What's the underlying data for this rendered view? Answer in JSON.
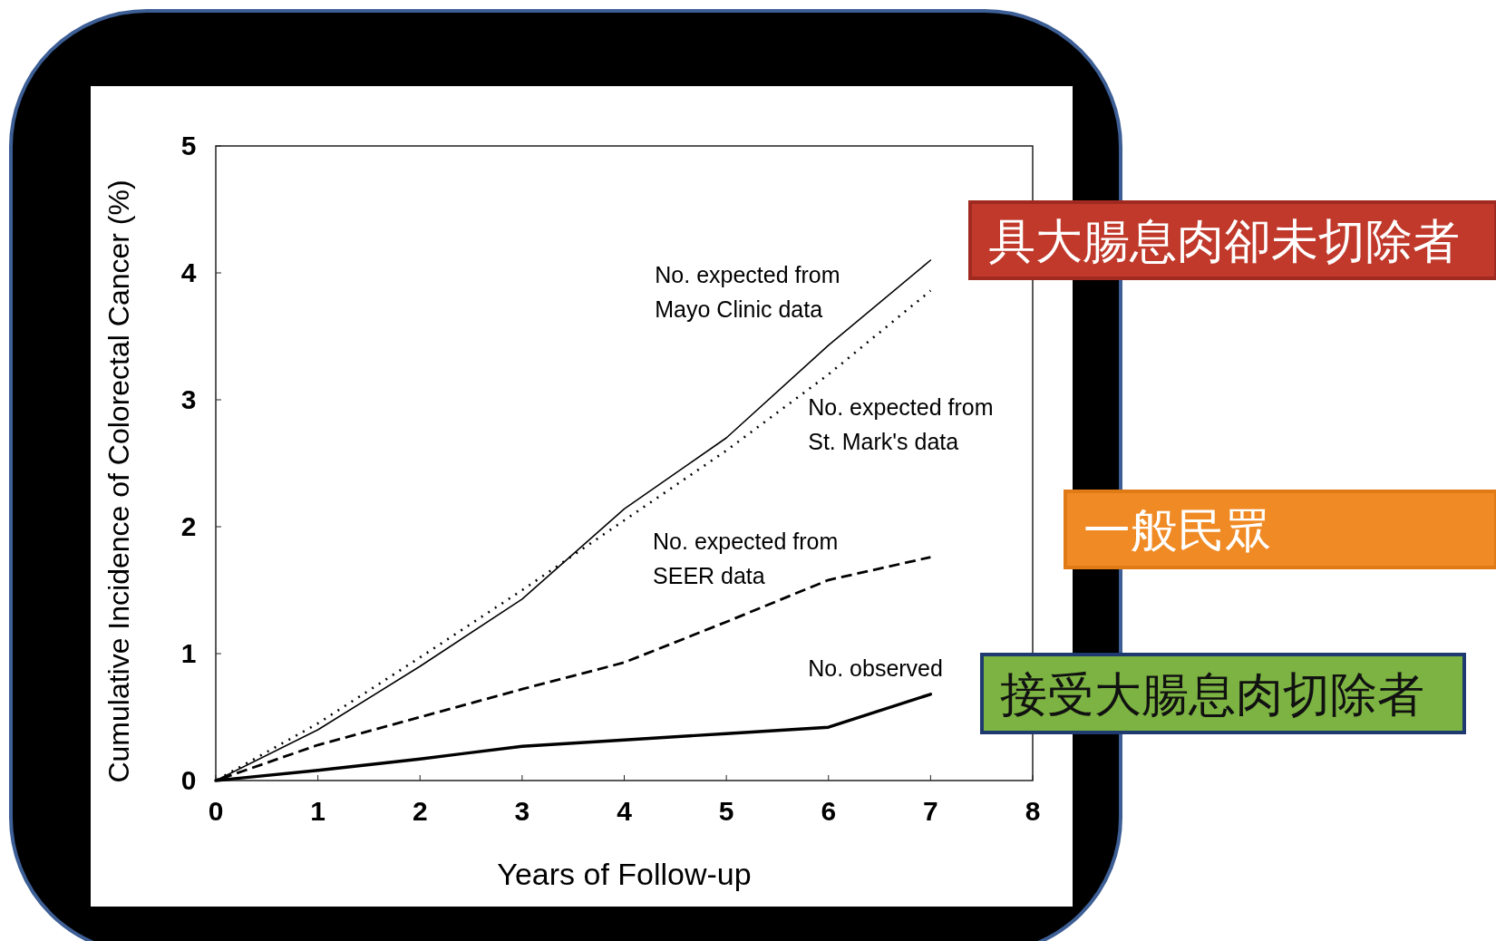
{
  "chart_data": {
    "type": "line",
    "xlabel": "Years of Follow-up",
    "ylabel": "Cumulative Incidence of Colorectal Cancer (%)",
    "x": [
      0,
      1,
      2,
      3,
      4,
      5,
      6,
      7
    ],
    "series": [
      {
        "name": "No. expected from Mayo Clinic data",
        "color": "#000000",
        "line_style": "solid",
        "values": [
          0,
          0.4,
          0.9,
          1.43,
          2.14,
          2.7,
          3.43,
          4.1
        ]
      },
      {
        "name": "No. expected from St. Mark's data",
        "color": "#000000",
        "line_style": "dotted",
        "values": [
          0,
          0.45,
          0.97,
          1.5,
          2.05,
          2.6,
          3.2,
          3.86
        ]
      },
      {
        "name": "No. expected from SEER data",
        "color": "#000000",
        "line_style": "dashed",
        "values": [
          0,
          0.28,
          0.5,
          0.72,
          0.93,
          1.25,
          1.58,
          1.76
        ]
      },
      {
        "name": "No. observed",
        "color": "#000000",
        "line_style": "solid",
        "values": [
          0,
          0.08,
          0.17,
          0.27,
          0.32,
          0.37,
          0.42,
          0.68
        ]
      }
    ],
    "xlim": [
      0,
      8
    ],
    "ylim": [
      0,
      5
    ],
    "xticks": [
      0,
      1,
      2,
      3,
      4,
      5,
      6,
      7,
      8
    ],
    "yticks": [
      0,
      1,
      2,
      3,
      4,
      5
    ],
    "annotations": [
      "具大腸息肉卻未切除者",
      "一般民眾",
      "接受大腸息肉切除者"
    ]
  }
}
